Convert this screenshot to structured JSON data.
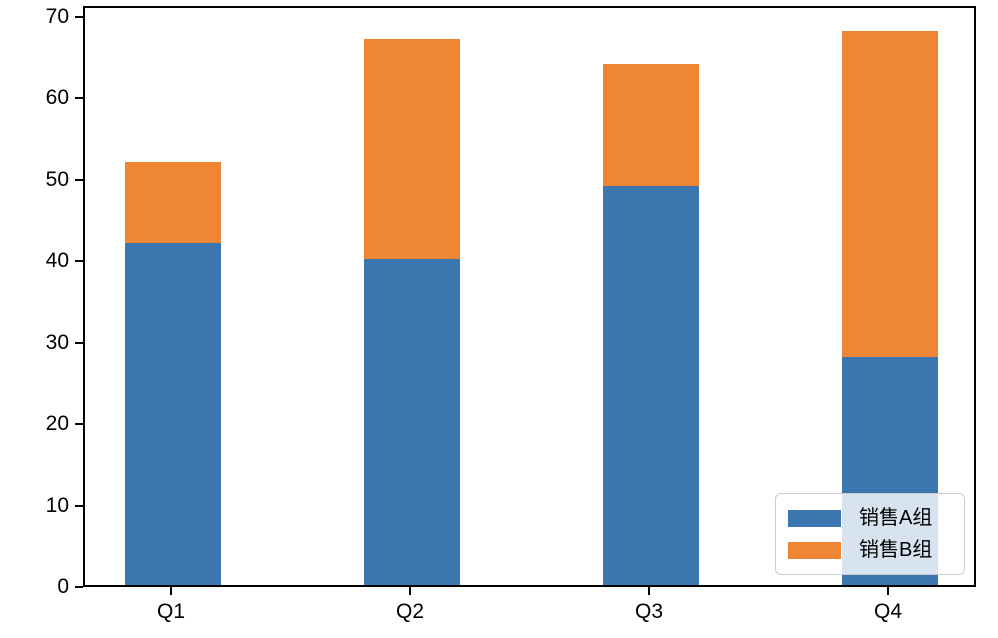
{
  "chart_data": {
    "type": "bar",
    "stacked": true,
    "title": "",
    "xlabel": "",
    "ylabel": "",
    "categories": [
      "Q1",
      "Q2",
      "Q3",
      "Q4"
    ],
    "series": [
      {
        "name": "销售A组",
        "color": "#3b76af",
        "values": [
          42,
          40,
          49,
          28
        ]
      },
      {
        "name": "销售B组",
        "color": "#ef8636",
        "values": [
          10,
          27,
          15,
          40
        ]
      }
    ],
    "stack_totals": [
      52,
      67,
      64,
      68
    ],
    "yticks": [
      0,
      10,
      20,
      30,
      40,
      50,
      60,
      70
    ],
    "ylim": [
      0,
      70
    ],
    "grid": false,
    "legend_position": "lower right",
    "axis_color": "#000000",
    "background_color": "#ffffff"
  }
}
